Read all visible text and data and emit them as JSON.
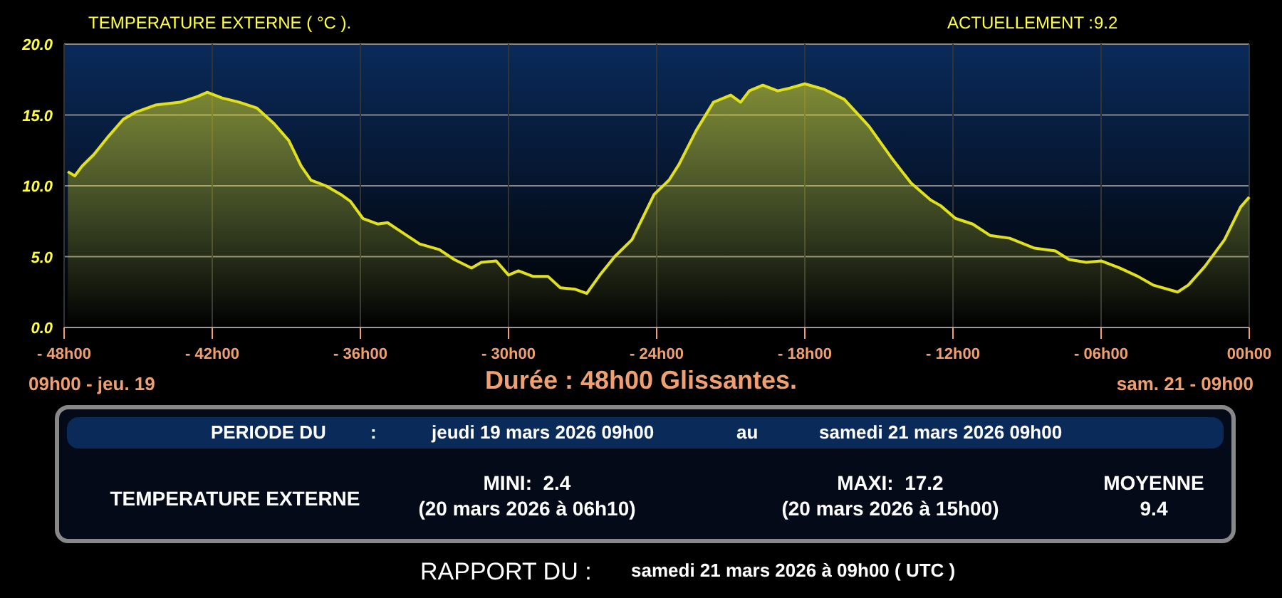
{
  "chart_data": {
    "type": "area",
    "title": "TEMPERATURE EXTERNE ( °C ).",
    "subtitle": "Durée : 48h00 Glissantes.",
    "x": [
      "2026-03-19T09:09",
      "2026-03-19T09:26",
      "2026-03-19T09:44",
      "2026-03-19T10:12",
      "2026-03-19T10:48",
      "2026-03-19T11:24",
      "2026-03-19T11:54",
      "2026-03-19T12:42",
      "2026-03-19T13:42",
      "2026-03-19T14:24",
      "2026-03-19T14:48",
      "2026-03-19T15:24",
      "2026-03-19T16:06",
      "2026-03-19T16:48",
      "2026-03-19T17:30",
      "2026-03-19T18:06",
      "2026-03-19T18:36",
      "2026-03-19T19:00",
      "2026-03-19T19:36",
      "2026-03-19T20:12",
      "2026-03-19T20:36",
      "2026-03-19T21:06",
      "2026-03-19T21:42",
      "2026-03-19T22:06",
      "2026-03-19T22:42",
      "2026-03-19T23:24",
      "2026-03-20T00:12",
      "2026-03-20T00:48",
      "2026-03-20T01:30",
      "2026-03-20T01:54",
      "2026-03-20T02:30",
      "2026-03-20T03:00",
      "2026-03-20T03:24",
      "2026-03-20T04:00",
      "2026-03-20T04:36",
      "2026-03-20T05:06",
      "2026-03-20T05:42",
      "2026-03-20T06:10",
      "2026-03-20T06:42",
      "2026-03-20T07:18",
      "2026-03-20T08:00",
      "2026-03-20T08:54",
      "2026-03-20T09:30",
      "2026-03-20T09:54",
      "2026-03-20T10:36",
      "2026-03-20T11:18",
      "2026-03-20T12:00",
      "2026-03-20T12:24",
      "2026-03-20T12:45",
      "2026-03-20T13:18",
      "2026-03-20T13:54",
      "2026-03-20T14:24",
      "2026-03-20T15:00",
      "2026-03-20T15:48",
      "2026-03-20T16:36",
      "2026-03-20T17:36",
      "2026-03-20T18:30",
      "2026-03-20T19:18",
      "2026-03-20T20:06",
      "2026-03-20T20:30",
      "2026-03-20T21:06",
      "2026-03-20T21:48",
      "2026-03-20T22:30",
      "2026-03-20T23:18",
      "2026-03-21T00:18",
      "2026-03-21T01:09",
      "2026-03-21T01:42",
      "2026-03-21T02:24",
      "2026-03-21T03:00",
      "2026-03-21T03:45",
      "2026-03-21T04:30",
      "2026-03-21T05:06",
      "2026-03-21T06:06",
      "2026-03-21T06:32",
      "2026-03-21T07:12",
      "2026-03-21T08:00",
      "2026-03-21T08:39",
      "2026-03-21T09:00"
    ],
    "series": [
      {
        "color": "#e0e020",
        "values": [
          11.0,
          10.7,
          11.4,
          12.2,
          13.5,
          14.7,
          15.2,
          15.7,
          15.9,
          16.3,
          16.6,
          16.2,
          15.9,
          15.5,
          14.4,
          13.2,
          11.4,
          10.4,
          10.0,
          9.4,
          8.9,
          7.7,
          7.3,
          7.4,
          6.7,
          5.9,
          5.5,
          4.8,
          4.2,
          4.6,
          4.7,
          3.7,
          4.0,
          3.6,
          3.6,
          2.8,
          2.7,
          2.4,
          3.7,
          5.0,
          6.2,
          9.4,
          10.4,
          11.5,
          13.9,
          15.9,
          16.4,
          15.9,
          16.7,
          17.1,
          16.7,
          16.9,
          17.2,
          16.8,
          16.1,
          14.2,
          12.0,
          10.2,
          9.0,
          8.6,
          7.7,
          7.3,
          6.5,
          6.3,
          5.6,
          5.4,
          4.8,
          4.6,
          4.7,
          4.2,
          3.6,
          3.0,
          2.5,
          3.0,
          4.3,
          6.2,
          8.5,
          9.2
        ]
      }
    ],
    "xlim": [
      "2026-03-19T09:00",
      "2026-03-21T09:00"
    ],
    "xticks": [
      {
        "value": "2026-03-19T09:00",
        "label": "- 48h00"
      },
      {
        "value": "2026-03-19T15:00",
        "label": "- 42h00"
      },
      {
        "value": "2026-03-19T21:00",
        "label": "- 36h00"
      },
      {
        "value": "2026-03-20T03:00",
        "label": "- 30h00"
      },
      {
        "value": "2026-03-20T09:00",
        "label": "- 24h00"
      },
      {
        "value": "2026-03-20T15:00",
        "label": "- 18h00"
      },
      {
        "value": "2026-03-20T21:00",
        "label": "- 12h00"
      },
      {
        "value": "2026-03-21T03:00",
        "label": "- 06h00"
      },
      {
        "value": "2026-03-21T09:00",
        "label": "00h00"
      }
    ],
    "ylim": [
      0,
      20
    ],
    "yticks": [
      {
        "value": 0,
        "label": "0.0"
      },
      {
        "value": 5,
        "label": "5.0"
      },
      {
        "value": 10,
        "label": "10.0"
      },
      {
        "value": 15,
        "label": "15.0"
      },
      {
        "value": 20,
        "label": "20.0"
      }
    ],
    "grid": true,
    "annotations": [
      "ACTUELLEMENT :",
      "9.2",
      "09h00 - jeu. 19",
      "sam. 21 - 09h00",
      "PERIODE DU",
      ":",
      "jeudi 19 mars 2026 09h00",
      "au",
      "samedi 21 mars 2026 09h00",
      "TEMPERATURE EXTERNE",
      "MINI:  2.4",
      "(20 mars 2026 à 06h10)",
      "MAXI:  17.2",
      "(20 mars 2026 à 15h00)",
      "MOYENNE",
      "9.4",
      "RAPPORT DU :",
      "samedi 21 mars 2026 à 09h00 ( UTC )"
    ]
  }
}
